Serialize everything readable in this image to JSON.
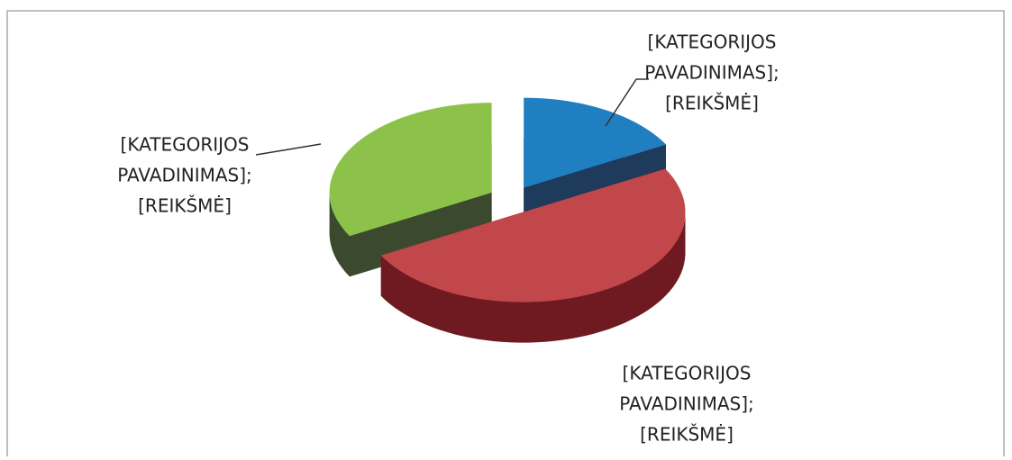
{
  "chart_data": {
    "type": "pie",
    "labels": [
      [
        "[KATEGORIJOS",
        "PAVADINIMAS];",
        "[REIKŠMĖ]"
      ],
      [
        "[KATEGORIJOS",
        "PAVADINIMAS];",
        "[REIKŠMĖ]"
      ],
      [
        "[KATEGORIJOS",
        "PAVADINIMAS];",
        "[REIKŠMĖ]"
      ]
    ],
    "values": [
      17,
      50,
      33
    ],
    "colors": [
      "#1f7fc0",
      "#c2474b",
      "#8dc24a"
    ],
    "side_colors": [
      "#1e3b5c",
      "#6e1a20",
      "#3b4a2f"
    ]
  }
}
